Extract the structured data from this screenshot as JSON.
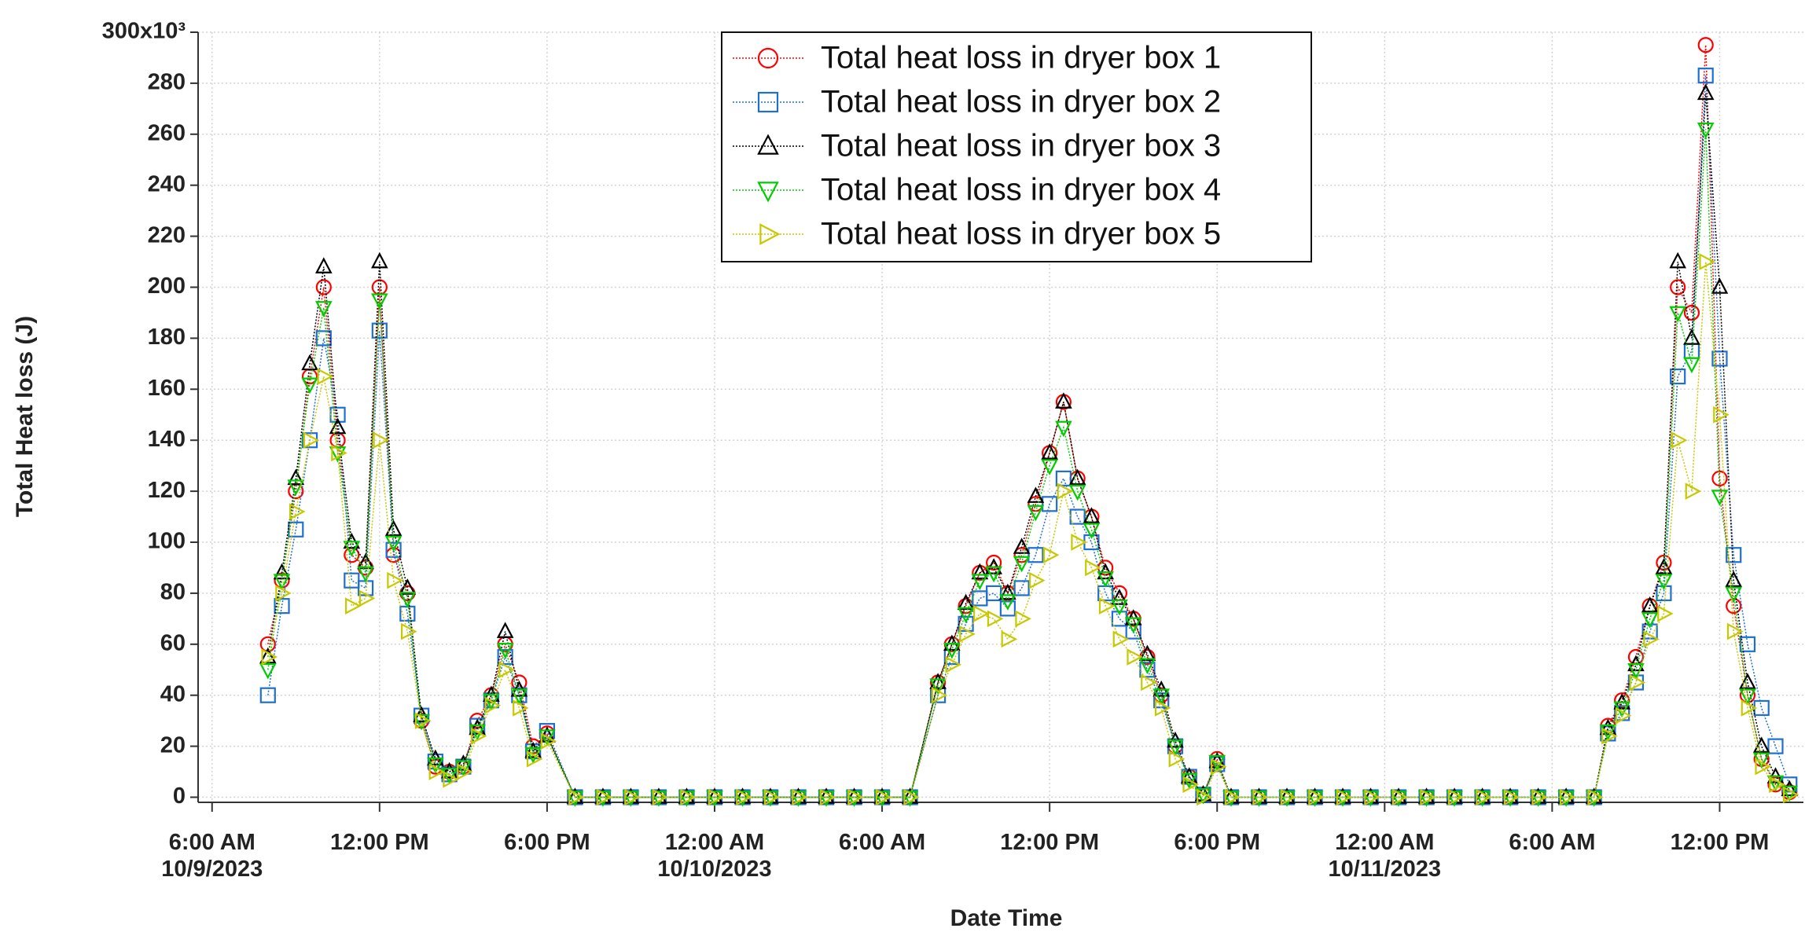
{
  "chart_data": {
    "type": "line",
    "xlabel": "Date Time",
    "ylabel": "Total Heat loss (J)",
    "xlim": [
      "2023-10-09T05:30",
      "2023-10-11T15:00"
    ],
    "xticks": [
      {
        "value": "2023-10-09T06:00",
        "label": "6:00 AM\n10/9/2023"
      },
      {
        "value": "2023-10-09T12:00",
        "label": "12:00 PM"
      },
      {
        "value": "2023-10-09T18:00",
        "label": "6:00 PM"
      },
      {
        "value": "2023-10-10T00:00",
        "label": "12:00 AM\n10/10/2023"
      },
      {
        "value": "2023-10-10T06:00",
        "label": "6:00 AM"
      },
      {
        "value": "2023-10-10T12:00",
        "label": "12:00 PM"
      },
      {
        "value": "2023-10-10T18:00",
        "label": "6:00 PM"
      },
      {
        "value": "2023-10-11T00:00",
        "label": "12:00 AM\n10/11/2023"
      },
      {
        "value": "2023-10-11T06:00",
        "label": "6:00 AM"
      },
      {
        "value": "2023-10-11T12:00",
        "label": "12:00 PM"
      }
    ],
    "ylim": [
      -2,
      300
    ],
    "yticks": [
      0,
      20,
      40,
      60,
      80,
      100,
      120,
      140,
      160,
      180,
      200,
      220,
      240,
      260,
      280,
      {
        "value": 300,
        "label": "300x10³"
      }
    ],
    "grid": true,
    "legend": "top",
    "x": [
      "2023-10-09T08:00",
      "2023-10-09T08:30",
      "2023-10-09T09:00",
      "2023-10-09T09:30",
      "2023-10-09T10:00",
      "2023-10-09T10:30",
      "2023-10-09T11:00",
      "2023-10-09T11:30",
      "2023-10-09T12:00",
      "2023-10-09T12:30",
      "2023-10-09T13:00",
      "2023-10-09T13:30",
      "2023-10-09T14:00",
      "2023-10-09T14:30",
      "2023-10-09T15:00",
      "2023-10-09T15:30",
      "2023-10-09T16:00",
      "2023-10-09T16:30",
      "2023-10-09T17:00",
      "2023-10-09T17:30",
      "2023-10-09T18:00",
      "2023-10-09T19:00",
      "2023-10-09T20:00",
      "2023-10-09T21:00",
      "2023-10-09T22:00",
      "2023-10-09T23:00",
      "2023-10-10T00:00",
      "2023-10-10T01:00",
      "2023-10-10T02:00",
      "2023-10-10T03:00",
      "2023-10-10T04:00",
      "2023-10-10T05:00",
      "2023-10-10T06:00",
      "2023-10-10T07:00",
      "2023-10-10T08:00",
      "2023-10-10T08:30",
      "2023-10-10T09:00",
      "2023-10-10T09:30",
      "2023-10-10T10:00",
      "2023-10-10T10:30",
      "2023-10-10T11:00",
      "2023-10-10T11:30",
      "2023-10-10T12:00",
      "2023-10-10T12:30",
      "2023-10-10T13:00",
      "2023-10-10T13:30",
      "2023-10-10T14:00",
      "2023-10-10T14:30",
      "2023-10-10T15:00",
      "2023-10-10T15:30",
      "2023-10-10T16:00",
      "2023-10-10T16:30",
      "2023-10-10T17:00",
      "2023-10-10T17:30",
      "2023-10-10T18:00",
      "2023-10-10T18:30",
      "2023-10-10T19:30",
      "2023-10-10T20:30",
      "2023-10-10T21:30",
      "2023-10-10T22:30",
      "2023-10-10T23:30",
      "2023-10-11T00:30",
      "2023-10-11T01:30",
      "2023-10-11T02:30",
      "2023-10-11T03:30",
      "2023-10-11T04:30",
      "2023-10-11T05:30",
      "2023-10-11T06:30",
      "2023-10-11T07:30",
      "2023-10-11T08:00",
      "2023-10-11T08:30",
      "2023-10-11T09:00",
      "2023-10-11T09:30",
      "2023-10-11T10:00",
      "2023-10-11T10:30",
      "2023-10-11T11:00",
      "2023-10-11T11:30",
      "2023-10-11T12:00",
      "2023-10-11T12:30",
      "2023-10-11T13:00",
      "2023-10-11T13:30",
      "2023-10-11T14:00",
      "2023-10-11T14:30"
    ],
    "series": [
      {
        "name": "Total heat loss in dryer box 1",
        "color": "#ff0000",
        "marker": "circle",
        "values": [
          60,
          85,
          120,
          165,
          200,
          140,
          95,
          90,
          200,
          95,
          80,
          30,
          12,
          10,
          12,
          30,
          40,
          60,
          45,
          20,
          25,
          0,
          0,
          0,
          0,
          0,
          0,
          0,
          0,
          0,
          0,
          0,
          0,
          0,
          45,
          60,
          75,
          88,
          92,
          80,
          95,
          115,
          135,
          155,
          125,
          110,
          90,
          80,
          70,
          55,
          40,
          20,
          8,
          1,
          15,
          0,
          0,
          0,
          0,
          0,
          0,
          0,
          0,
          0,
          0,
          0,
          0,
          0,
          0,
          28,
          38,
          55,
          75,
          92,
          200,
          190,
          295,
          125,
          75,
          40,
          15,
          5,
          2
        ]
      },
      {
        "name": "Total heat loss in dryer box 2",
        "color": "#1f6fd1",
        "marker": "square",
        "values": [
          40,
          75,
          105,
          140,
          180,
          150,
          85,
          82,
          183,
          97,
          72,
          32,
          14,
          9,
          12,
          28,
          38,
          55,
          40,
          18,
          26,
          0,
          0,
          0,
          0,
          0,
          0,
          0,
          0,
          0,
          0,
          0,
          0,
          0,
          40,
          55,
          68,
          78,
          80,
          74,
          82,
          95,
          115,
          125,
          110,
          100,
          80,
          70,
          65,
          50,
          38,
          20,
          8,
          1,
          13,
          0,
          0,
          0,
          0,
          0,
          0,
          0,
          0,
          0,
          0,
          0,
          0,
          0,
          0,
          25,
          33,
          45,
          65,
          80,
          165,
          175,
          283,
          172,
          95,
          60,
          35,
          20,
          5
        ]
      },
      {
        "name": "Total heat loss in dryer box 3",
        "color": "#000000",
        "marker": "triangle-up",
        "values": [
          55,
          88,
          125,
          170,
          208,
          145,
          100,
          92,
          210,
          105,
          82,
          32,
          15,
          10,
          13,
          27,
          40,
          65,
          42,
          18,
          24,
          0,
          0,
          0,
          0,
          0,
          0,
          0,
          0,
          0,
          0,
          0,
          0,
          0,
          45,
          60,
          76,
          88,
          90,
          80,
          98,
          118,
          135,
          155,
          125,
          110,
          88,
          78,
          70,
          56,
          42,
          22,
          8,
          1,
          14,
          0,
          0,
          0,
          0,
          0,
          0,
          0,
          0,
          0,
          0,
          0,
          0,
          0,
          0,
          27,
          37,
          52,
          75,
          90,
          210,
          180,
          276,
          200,
          85,
          45,
          20,
          8,
          3
        ]
      },
      {
        "name": "Total heat loss in dryer box 4",
        "color": "#00cc00",
        "marker": "triangle-down",
        "values": [
          50,
          85,
          122,
          162,
          192,
          135,
          98,
          88,
          195,
          100,
          78,
          30,
          13,
          9,
          12,
          26,
          38,
          58,
          40,
          17,
          24,
          0,
          0,
          0,
          0,
          0,
          0,
          0,
          0,
          0,
          0,
          0,
          0,
          0,
          44,
          58,
          72,
          85,
          88,
          77,
          92,
          112,
          130,
          145,
          120,
          105,
          86,
          75,
          68,
          52,
          40,
          20,
          7,
          1,
          14,
          0,
          0,
          0,
          0,
          0,
          0,
          0,
          0,
          0,
          0,
          0,
          0,
          0,
          0,
          26,
          35,
          50,
          70,
          85,
          190,
          170,
          262,
          118,
          80,
          40,
          15,
          6,
          2
        ]
      },
      {
        "name": "Total heat loss in dryer box 5",
        "color": "#c8c800",
        "marker": "triangle-right",
        "values": [
          55,
          80,
          112,
          140,
          165,
          135,
          75,
          78,
          140,
          85,
          65,
          30,
          10,
          7,
          10,
          24,
          36,
          50,
          35,
          15,
          22,
          0,
          0,
          0,
          0,
          0,
          0,
          0,
          0,
          0,
          0,
          0,
          0,
          0,
          40,
          52,
          64,
          72,
          70,
          62,
          70,
          85,
          95,
          120,
          100,
          90,
          75,
          62,
          55,
          45,
          35,
          15,
          5,
          0,
          12,
          0,
          0,
          0,
          0,
          0,
          0,
          0,
          0,
          0,
          0,
          0,
          0,
          0,
          0,
          24,
          32,
          45,
          62,
          72,
          140,
          120,
          210,
          150,
          65,
          35,
          12,
          5,
          1
        ]
      }
    ]
  }
}
